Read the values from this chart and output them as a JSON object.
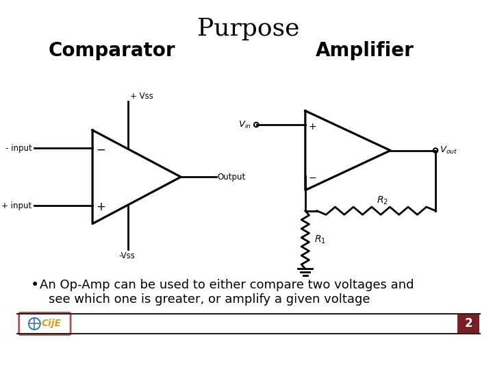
{
  "title": "Purpose",
  "subtitle_left": "Comparator",
  "subtitle_right": "Amplifier",
  "bullet_line1": "An Op-Amp can be used to either compare two voltages and",
  "bullet_line2": "see which one is greater, or amplify a given voltage",
  "bg_color": "#ffffff",
  "title_fontsize": 26,
  "subtitle_fontsize": 20,
  "bullet_fontsize": 13,
  "circuit_color": "#000000",
  "footer_bar_color": "#7a2025",
  "footer_logo_border": "#b05050",
  "page_number": "2",
  "lw": 2.0
}
